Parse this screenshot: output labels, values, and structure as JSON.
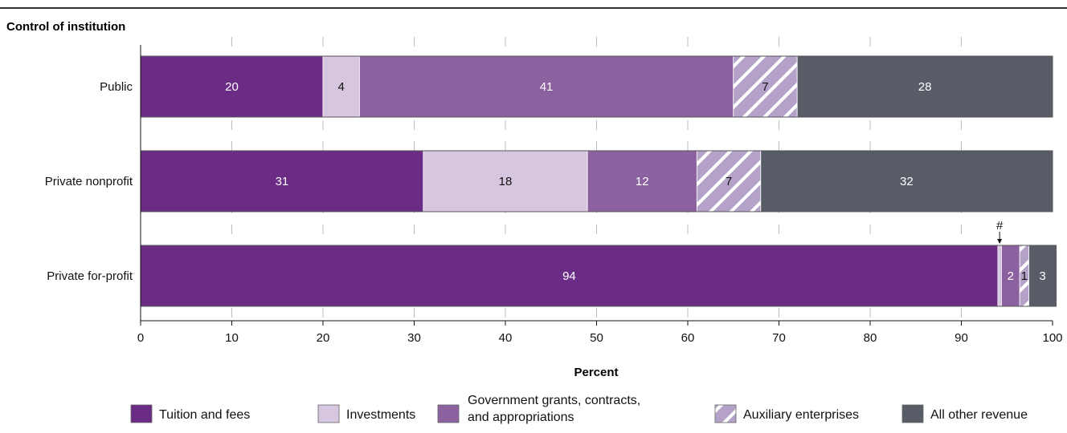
{
  "chart_data": {
    "type": "bar",
    "orientation": "horizontal",
    "stacked": true,
    "y_axis_title": "Control of institution",
    "xlabel": "Percent",
    "xlim": [
      0,
      100
    ],
    "xticks": [
      "0",
      "10",
      "20",
      "30",
      "40",
      "50",
      "60",
      "70",
      "80",
      "90",
      "100"
    ],
    "categories": [
      "Public",
      "Private nonprofit",
      "Private for-profit"
    ],
    "series": [
      {
        "name": "Tuition and fees",
        "color": "#6b2c85",
        "pattern": "solid",
        "values": [
          20,
          31,
          94
        ],
        "labels": [
          "20",
          "31",
          "94"
        ]
      },
      {
        "name": "Investments",
        "color": "#d7c6df",
        "pattern": "solid",
        "values": [
          4,
          18,
          0.4
        ],
        "labels": [
          "4",
          "18",
          "#"
        ]
      },
      {
        "name": "Government grants, contracts, and appropriations",
        "legend_lines": [
          "Government grants, contracts,",
          "and appropriations"
        ],
        "color": "#8c61a0",
        "pattern": "solid",
        "values": [
          41,
          12,
          2
        ],
        "labels": [
          "41",
          "12",
          "2"
        ]
      },
      {
        "name": "Auxiliary enterprises",
        "color": "#b4a2c8",
        "pattern": "hatched",
        "values": [
          7,
          7,
          1
        ],
        "labels": [
          "7",
          "7",
          "1"
        ]
      },
      {
        "name": "All other revenue",
        "color": "#575c67",
        "pattern": "solid",
        "values": [
          28,
          32,
          3
        ],
        "labels": [
          "28",
          "32",
          "3"
        ]
      }
    ],
    "grid": "vertical dashed",
    "legend_position": "bottom"
  }
}
